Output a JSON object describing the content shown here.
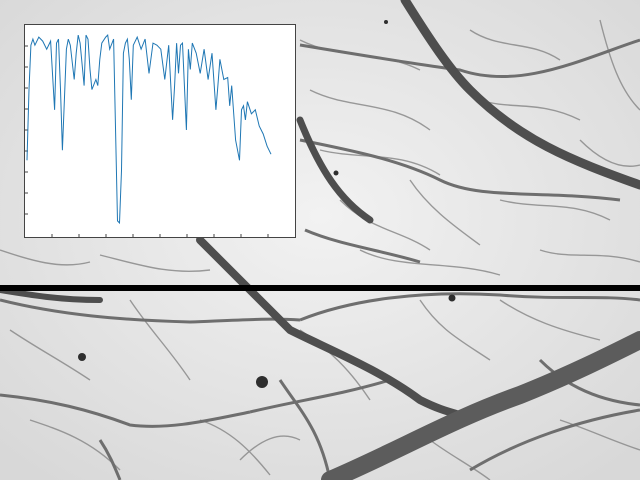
{
  "scene": {
    "subject": "vein-network-micrograph",
    "background_color": "#e6e6e6",
    "vein_color": "#5a5a5a",
    "scan_line_color": "#000000"
  },
  "chart_data": {
    "type": "line",
    "title": "",
    "xlabel": "",
    "ylabel": "",
    "grid": false,
    "legend": "none",
    "xlim": [
      0,
      250
    ],
    "ylim": [
      0,
      1
    ],
    "series": [
      {
        "color": "#1f77b4",
        "x": [
          0,
          2,
          4,
          6,
          8,
          12,
          16,
          20,
          24,
          28,
          30,
          32,
          34,
          36,
          40,
          42,
          44,
          48,
          50,
          52,
          54,
          58,
          60,
          62,
          64,
          66,
          70,
          72,
          74,
          76,
          80,
          82,
          84,
          88,
          92,
          94,
          96,
          98,
          100,
          102,
          104,
          106,
          108,
          112,
          116,
          120,
          124,
          128,
          132,
          136,
          140,
          144,
          148,
          150,
          152,
          154,
          156,
          158,
          162,
          164,
          166,
          168,
          172,
          176,
          180,
          184,
          188,
          192,
          194,
          196,
          200,
          204,
          206,
          208,
          212,
          216,
          218,
          220,
          222,
          224,
          228,
          232,
          236,
          240,
          244,
          248
        ],
        "y": [
          0.35,
          0.7,
          0.92,
          0.95,
          0.92,
          0.96,
          0.94,
          0.9,
          0.94,
          0.6,
          0.93,
          0.95,
          0.7,
          0.4,
          0.9,
          0.95,
          0.92,
          0.75,
          0.88,
          0.97,
          0.93,
          0.72,
          0.97,
          0.95,
          0.8,
          0.7,
          0.75,
          0.72,
          0.85,
          0.93,
          0.96,
          0.97,
          0.9,
          0.95,
          0.05,
          0.04,
          0.3,
          0.88,
          0.93,
          0.95,
          0.85,
          0.65,
          0.92,
          0.96,
          0.9,
          0.95,
          0.78,
          0.93,
          0.92,
          0.9,
          0.75,
          0.92,
          0.55,
          0.72,
          0.93,
          0.78,
          0.92,
          0.93,
          0.5,
          0.9,
          0.8,
          0.93,
          0.88,
          0.78,
          0.9,
          0.75,
          0.88,
          0.6,
          0.72,
          0.85,
          0.75,
          0.76,
          0.62,
          0.72,
          0.45,
          0.35,
          0.6,
          0.62,
          0.55,
          0.64,
          0.58,
          0.6,
          0.52,
          0.48,
          0.42,
          0.38
        ]
      }
    ]
  }
}
